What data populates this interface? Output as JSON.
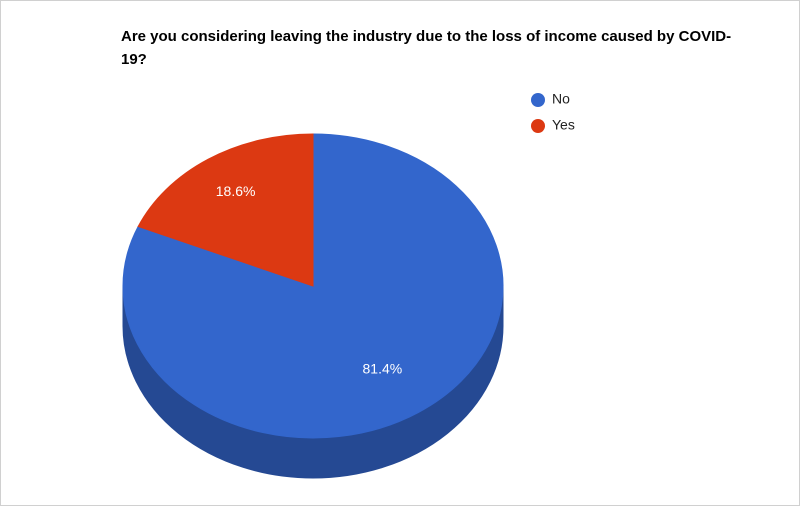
{
  "chart_data": {
    "type": "pie",
    "is3D": true,
    "title": "Are you considering leaving the industry due to the loss of income caused by COVID-19?",
    "categories": [
      "No",
      "Yes"
    ],
    "values": [
      81.4,
      18.6
    ],
    "value_labels": [
      "81.4%",
      "18.6%"
    ],
    "colors": [
      "#3366cc",
      "#dc3912"
    ]
  }
}
